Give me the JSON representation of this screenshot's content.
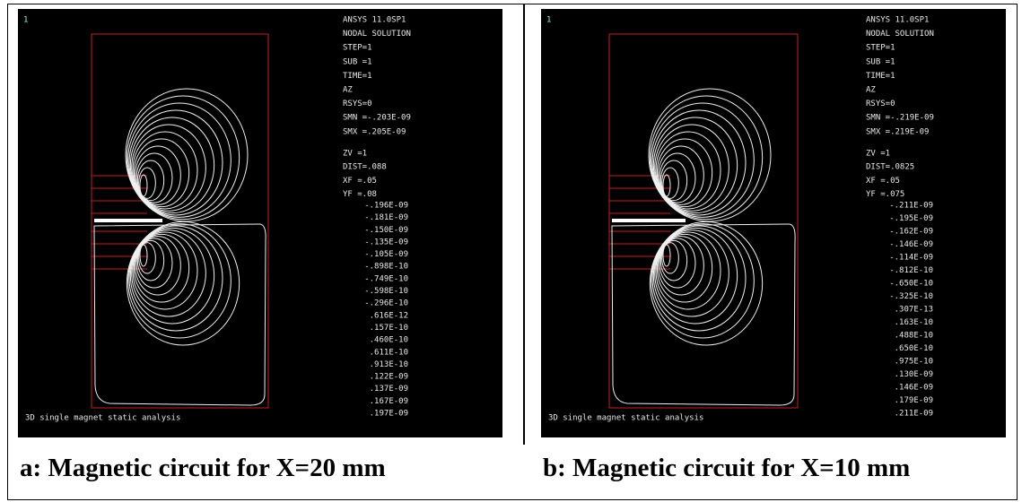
{
  "panels": [
    {
      "window_number": "1",
      "info": [
        "ANSYS 11.0SP1",
        "NODAL SOLUTION",
        "STEP=1",
        "SUB =1",
        "TIME=1",
        "AZ",
        "RSYS=0",
        "SMN =-.203E-09",
        "SMX =.205E-09"
      ],
      "view": [
        "ZV  =1",
        "DIST=.088",
        "XF  =.05",
        "YF  =.08"
      ],
      "legend": [
        "-.196E-09",
        "-.181E-09",
        "-.150E-09",
        "-.135E-09",
        "-.105E-09",
        "-.898E-10",
        "-.749E-10",
        "-.598E-10",
        "-.296E-10",
        ".616E-12",
        ".157E-10",
        ".460E-10",
        ".611E-10",
        ".913E-10",
        ".122E-09",
        ".137E-09",
        ".167E-09",
        ".197E-09"
      ],
      "footer": "3D single magnet static analysis",
      "caption": "a: Magnetic circuit for X=20 mm"
    },
    {
      "window_number": "1",
      "info": [
        "ANSYS 11.0SP1",
        "NODAL SOLUTION",
        "STEP=1",
        "SUB =1",
        "TIME=1",
        "AZ",
        "RSYS=0",
        "SMN =-.219E-09",
        "SMX =.219E-09"
      ],
      "view": [
        "ZV  =1",
        "DIST=.0825",
        "XF  =.05",
        "YF  =.075"
      ],
      "legend": [
        "-.211E-09",
        "-.195E-09",
        "-.162E-09",
        "-.146E-09",
        "-.114E-09",
        "-.812E-10",
        "-.650E-10",
        "-.325E-10",
        ".307E-13",
        ".163E-10",
        ".488E-10",
        ".650E-10",
        ".975E-10",
        ".130E-09",
        ".146E-09",
        ".179E-09",
        ".211E-09"
      ],
      "footer": "3D single magnet static analysis",
      "caption": "b: Magnetic circuit for X=10 mm"
    }
  ]
}
